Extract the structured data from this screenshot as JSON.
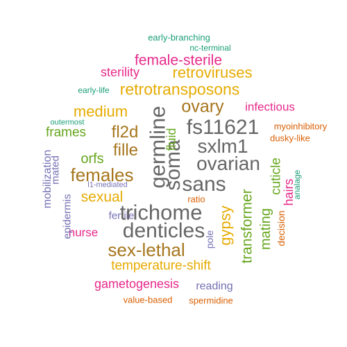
{
  "palette": {
    "teal": "#1b9e77",
    "orange": "#d95f02",
    "purple": "#7570b3",
    "magenta": "#e7298a",
    "green": "#66a61e",
    "gold": "#e6ab02",
    "brown": "#a6761d",
    "gray": "#666666"
  },
  "words": [
    {
      "text": "early-branching",
      "color": "teal"
    },
    {
      "text": "nc-terminal",
      "color": "teal"
    },
    {
      "text": "female-sterile",
      "color": "magenta"
    },
    {
      "text": "sterility",
      "color": "magenta"
    },
    {
      "text": "retroviruses",
      "color": "gold"
    },
    {
      "text": "early-life",
      "color": "teal"
    },
    {
      "text": "retrotransposons",
      "color": "gold"
    },
    {
      "text": "ovary",
      "color": "brown"
    },
    {
      "text": "infectious",
      "color": "magenta"
    },
    {
      "text": "medium",
      "color": "gold"
    },
    {
      "text": "outermost",
      "color": "teal"
    },
    {
      "text": "fs11621",
      "color": "gray"
    },
    {
      "text": "myoinhibitory",
      "color": "orange"
    },
    {
      "text": "frames",
      "color": "green"
    },
    {
      "text": "fl2d",
      "color": "brown"
    },
    {
      "text": "dusky-like",
      "color": "orange"
    },
    {
      "text": "fille",
      "color": "brown"
    },
    {
      "text": "sxlm1",
      "color": "gray"
    },
    {
      "text": "orfs",
      "color": "green"
    },
    {
      "text": "ovarian",
      "color": "gray"
    },
    {
      "text": "females",
      "color": "brown"
    },
    {
      "text": "sans",
      "color": "gray"
    },
    {
      "text": "l1-mediated",
      "color": "purple"
    },
    {
      "text": "sexual",
      "color": "gold"
    },
    {
      "text": "ratio",
      "color": "orange"
    },
    {
      "text": "fertile",
      "color": "purple"
    },
    {
      "text": "trichome",
      "color": "gray"
    },
    {
      "text": "denticles",
      "color": "gray"
    },
    {
      "text": "nurse",
      "color": "magenta"
    },
    {
      "text": "sex-lethal",
      "color": "brown"
    },
    {
      "text": "temperature-shift",
      "color": "gold"
    },
    {
      "text": "gametogenesis",
      "color": "magenta"
    },
    {
      "text": "reading",
      "color": "purple"
    },
    {
      "text": "value-based",
      "color": "orange"
    },
    {
      "text": "spermidine",
      "color": "orange"
    },
    {
      "text": "germline",
      "color": "gray"
    },
    {
      "text": "soma",
      "color": "gray"
    },
    {
      "text": "fluid",
      "color": "green"
    },
    {
      "text": "gypsy",
      "color": "gold"
    },
    {
      "text": "pole",
      "color": "purple"
    },
    {
      "text": "transformer",
      "color": "green"
    },
    {
      "text": "mating",
      "color": "green"
    },
    {
      "text": "cuticle",
      "color": "green"
    },
    {
      "text": "hairs",
      "color": "magenta"
    },
    {
      "text": "analage",
      "color": "teal"
    },
    {
      "text": "decision",
      "color": "orange"
    },
    {
      "text": "mobilization",
      "color": "purple"
    },
    {
      "text": "mated",
      "color": "purple"
    },
    {
      "text": "epidermis",
      "color": "purple"
    }
  ]
}
